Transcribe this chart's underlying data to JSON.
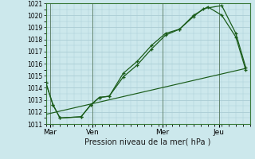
{
  "background_color": "#cce8ec",
  "grid_color": "#aaccd4",
  "line_color": "#1a5c1a",
  "title": "Pression niveau de la mer( hPa )",
  "ylabel_ticks": [
    1011,
    1012,
    1013,
    1014,
    1015,
    1016,
    1017,
    1018,
    1019,
    1020,
    1021
  ],
  "ylim": [
    1011.0,
    1021.0
  ],
  "xlim": [
    0,
    14.5
  ],
  "day_labels": [
    "Mar",
    "Ven",
    "Mer",
    "Jeu"
  ],
  "day_positions": [
    0.3,
    3.3,
    8.3,
    12.3
  ],
  "vline_positions": [
    0.3,
    3.3,
    8.3,
    12.3
  ],
  "series1": {
    "x": [
      0.0,
      0.5,
      1.0,
      2.5,
      3.2,
      3.8,
      4.5,
      5.5,
      6.5,
      7.5,
      8.5,
      9.5,
      10.5,
      11.5,
      12.5,
      13.5,
      14.2
    ],
    "y": [
      1014.4,
      1012.6,
      1011.5,
      1011.6,
      1012.6,
      1013.2,
      1013.3,
      1015.2,
      1016.2,
      1017.5,
      1018.5,
      1018.85,
      1020.0,
      1020.7,
      1020.0,
      1018.2,
      1015.5
    ]
  },
  "series2": {
    "x": [
      0.0,
      0.5,
      1.0,
      2.5,
      3.2,
      3.8,
      4.5,
      5.5,
      6.5,
      7.5,
      8.5,
      9.5,
      10.5,
      11.2,
      12.5,
      13.5,
      14.2
    ],
    "y": [
      1014.4,
      1012.6,
      1011.5,
      1011.6,
      1012.6,
      1013.2,
      1013.3,
      1014.9,
      1015.9,
      1017.2,
      1018.35,
      1018.85,
      1019.9,
      1020.55,
      1020.8,
      1018.5,
      1015.7
    ]
  },
  "series3": {
    "x": [
      0.0,
      14.2
    ],
    "y": [
      1011.8,
      1015.6
    ]
  }
}
